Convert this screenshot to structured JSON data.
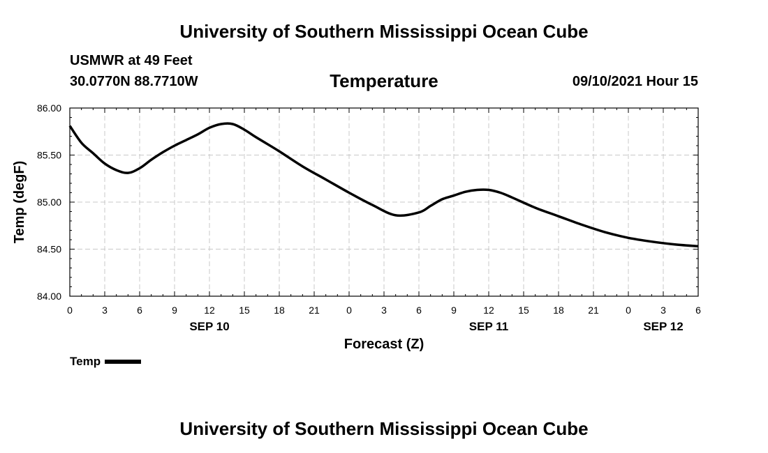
{
  "header": {
    "title": "University of Southern Mississippi Ocean Cube",
    "station": "USMWR at 49 Feet",
    "coordinates": "30.0770N  88.7710W",
    "chart_title": "Temperature",
    "datetime": "09/10/2021 Hour 15"
  },
  "footer": {
    "title": "University of Southern Mississippi Ocean Cube"
  },
  "chart_data": {
    "type": "line",
    "title": "Temperature",
    "xlabel": "Forecast (Z)",
    "ylabel": "Temp (degF)",
    "ylim": [
      84.0,
      86.0
    ],
    "xlim": [
      0,
      54
    ],
    "x_unit": "forecast hours from SEP 10 00Z",
    "yticks": [
      84.0,
      84.5,
      85.0,
      85.5,
      86.0
    ],
    "ytick_labels": [
      "84.00",
      "84.50",
      "85.00",
      "85.50",
      "86.00"
    ],
    "xticks": [
      0,
      3,
      6,
      9,
      12,
      15,
      18,
      21,
      24,
      27,
      30,
      33,
      36,
      39,
      42,
      45,
      48,
      51,
      54
    ],
    "xtick_labels": [
      "0",
      "3",
      "6",
      "9",
      "12",
      "15",
      "18",
      "21",
      "0",
      "3",
      "6",
      "9",
      "12",
      "15",
      "18",
      "21",
      "0",
      "3",
      "6"
    ],
    "day_labels": [
      {
        "x": 12,
        "label": "SEP 10"
      },
      {
        "x": 36,
        "label": "SEP 11"
      },
      {
        "x": 51,
        "label": "SEP 12"
      }
    ],
    "grid": true,
    "legend": "bottom-left",
    "series": [
      {
        "name": "Temp",
        "color": "#000000",
        "x": [
          0,
          1,
          2,
          3,
          4,
          5,
          6,
          7,
          8,
          9,
          10,
          11,
          12,
          13,
          14,
          15,
          16,
          18,
          20,
          22,
          24,
          26,
          28,
          30,
          31,
          32,
          33,
          34,
          35,
          36,
          37,
          38,
          40,
          42,
          44,
          46,
          48,
          50,
          52,
          54
        ],
        "values": [
          85.81,
          85.63,
          85.52,
          85.41,
          85.34,
          85.31,
          85.36,
          85.45,
          85.53,
          85.6,
          85.66,
          85.72,
          85.79,
          85.83,
          85.83,
          85.77,
          85.69,
          85.54,
          85.38,
          85.24,
          85.1,
          84.97,
          84.86,
          84.89,
          84.96,
          85.03,
          85.07,
          85.11,
          85.13,
          85.13,
          85.1,
          85.05,
          84.94,
          84.85,
          84.76,
          84.68,
          84.62,
          84.58,
          84.55,
          84.53
        ]
      }
    ]
  }
}
